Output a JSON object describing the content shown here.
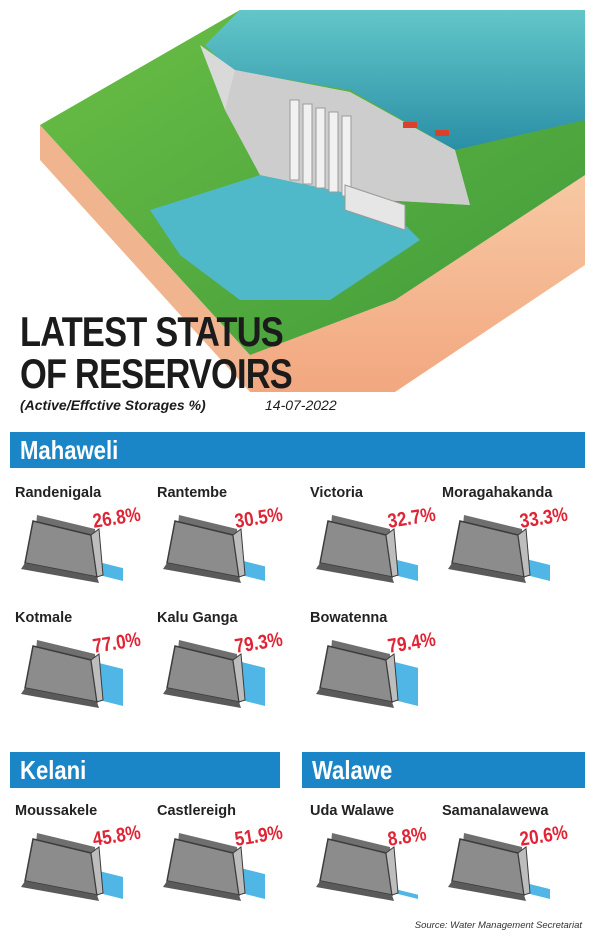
{
  "title_line1": "LATEST STATUS",
  "title_line2": "OF RESERVOIRS",
  "subtitle": "(Active/Effctive Storages %)",
  "date": "14-07-2022",
  "source": "Source: Water Management Secretariat",
  "colors": {
    "banner": "#1a86c8",
    "percent_text": "#e02435",
    "water": "#4fb6e6",
    "dam_face": "#8c8c8c"
  },
  "chart_data": {
    "type": "bar",
    "title": "LATEST STATUS OF RESERVOIRS",
    "subtitle": "(Active/Effctive Storages %)",
    "unit": "%",
    "groups": [
      {
        "name": "Mahaweli",
        "reservoirs": [
          {
            "name": "Randenigala",
            "value": 26.8,
            "label": "26.8%"
          },
          {
            "name": "Rantembe",
            "value": 30.5,
            "label": "30.5%"
          },
          {
            "name": "Victoria",
            "value": 32.7,
            "label": "32.7%"
          },
          {
            "name": "Moragahakanda",
            "value": 33.3,
            "label": "33.3%"
          },
          {
            "name": "Kotmale",
            "value": 77.0,
            "label": "77.0%"
          },
          {
            "name": "Kalu Ganga",
            "value": 79.3,
            "label": "79.3%"
          },
          {
            "name": "Bowatenna",
            "value": 79.4,
            "label": "79.4%"
          }
        ]
      },
      {
        "name": "Kelani",
        "reservoirs": [
          {
            "name": "Moussakele",
            "value": 45.8,
            "label": "45.8%"
          },
          {
            "name": "Castlereigh",
            "value": 51.9,
            "label": "51.9%"
          }
        ]
      },
      {
        "name": "Walawe",
        "reservoirs": [
          {
            "name": "Uda Walawe",
            "value": 8.8,
            "label": "8.8%"
          },
          {
            "name": "Samanalawewa",
            "value": 20.6,
            "label": "20.6%"
          }
        ]
      }
    ]
  }
}
